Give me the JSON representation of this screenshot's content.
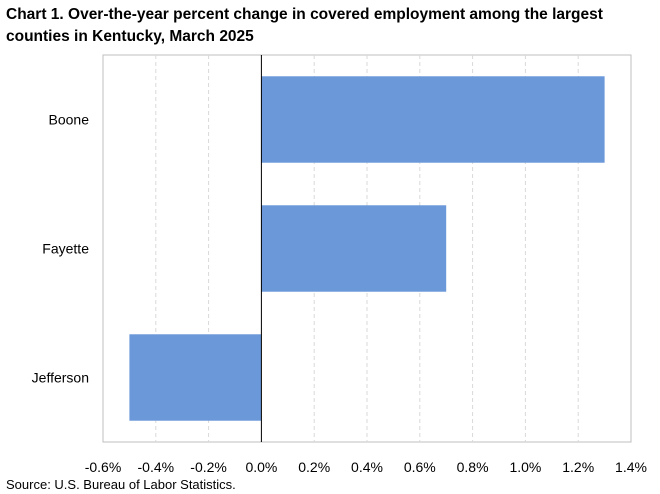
{
  "chart_data": {
    "type": "bar",
    "orientation": "horizontal",
    "title": "Chart 1. Over-the-year percent change in covered employment among the largest counties in Kentucky, March 2025",
    "categories": [
      "Boone",
      "Fayette",
      "Jefferson"
    ],
    "values": [
      1.3,
      0.7,
      -0.5
    ],
    "xlim": [
      -0.6,
      1.4
    ],
    "xticks": [
      -0.6,
      -0.4,
      -0.2,
      0.0,
      0.2,
      0.4,
      0.6,
      0.8,
      1.0,
      1.2,
      1.4
    ],
    "xtick_labels": [
      "-0.6%",
      "-0.4%",
      "-0.2%",
      "0.0%",
      "0.2%",
      "0.4%",
      "0.6%",
      "0.8%",
      "1.0%",
      "1.2%",
      "1.4%"
    ],
    "xlabel": "",
    "ylabel": "",
    "grid": "vertical dashed",
    "bar_color": "#6a98d8",
    "source": "Source: U.S. Bureau of Labor Statistics."
  }
}
